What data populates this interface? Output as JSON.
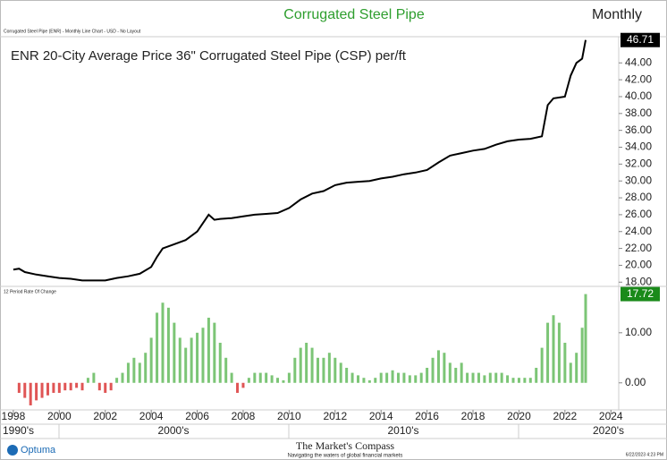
{
  "header": {
    "title": "Corrugated Steel Pipe",
    "period": "Monthly",
    "caption": "Corrugated Steel Pipe (ENR) - Monthly Line Chart - USD - No Layout"
  },
  "chart_data": [
    {
      "type": "line",
      "title": "ENR 20-City Average Price 36\" Corrugated Steel Pipe (CSP) per/ft",
      "color": "#000000",
      "x": [
        1998.0,
        1998.25,
        1998.5,
        1999.0,
        1999.5,
        2000.0,
        2000.5,
        2001.0,
        2001.5,
        2002.0,
        2002.5,
        2003.0,
        2003.5,
        2004.0,
        2004.25,
        2004.5,
        2005.0,
        2005.5,
        2006.0,
        2006.5,
        2006.75,
        2007.0,
        2007.5,
        2008.0,
        2008.5,
        2009.0,
        2009.5,
        2010.0,
        2010.5,
        2011.0,
        2011.5,
        2012.0,
        2012.5,
        2013.0,
        2013.5,
        2014.0,
        2014.5,
        2015.0,
        2015.5,
        2016.0,
        2016.5,
        2017.0,
        2017.5,
        2018.0,
        2018.5,
        2019.0,
        2019.5,
        2020.0,
        2020.5,
        2021.0,
        2021.25,
        2021.5,
        2022.0,
        2022.25,
        2022.5,
        2022.75,
        2022.9
      ],
      "values": [
        19.5,
        19.6,
        19.2,
        18.9,
        18.7,
        18.5,
        18.4,
        18.2,
        18.2,
        18.2,
        18.5,
        18.7,
        19.0,
        19.8,
        21.0,
        22.0,
        22.5,
        23.0,
        24.0,
        26.0,
        25.4,
        25.5,
        25.6,
        25.8,
        26.0,
        26.1,
        26.2,
        26.8,
        27.8,
        28.5,
        28.8,
        29.5,
        29.8,
        29.9,
        30.0,
        30.3,
        30.5,
        30.8,
        31.0,
        31.3,
        32.2,
        33.0,
        33.3,
        33.6,
        33.8,
        34.3,
        34.7,
        34.9,
        35.0,
        35.3,
        39.0,
        39.8,
        40.0,
        42.5,
        44.0,
        44.5,
        46.71
      ],
      "xlim": [
        1997.42,
        2024.34
      ],
      "ylim": [
        17.5,
        47.0
      ],
      "yticks": [
        {
          "value": 18,
          "label": "18.00"
        },
        {
          "value": 20,
          "label": "20.00"
        },
        {
          "value": 22,
          "label": "22.00"
        },
        {
          "value": 24,
          "label": "24.00"
        },
        {
          "value": 26,
          "label": "26.00"
        },
        {
          "value": 28,
          "label": "28.00"
        },
        {
          "value": 30,
          "label": "30.00"
        },
        {
          "value": 32,
          "label": "32.00"
        },
        {
          "value": 34,
          "label": "34.00"
        },
        {
          "value": 36,
          "label": "36.00"
        },
        {
          "value": 38,
          "label": "38.00"
        },
        {
          "value": 40,
          "label": "40.00"
        },
        {
          "value": 42,
          "label": "42.00"
        },
        {
          "value": 44,
          "label": "44.00"
        }
      ]
    },
    {
      "type": "bar",
      "title": "12 Period Rate Of Change",
      "colors": {
        "positive": "#7cc576",
        "negative": "#e05555"
      },
      "last_color": "#1a8a1a",
      "x": [
        1998.25,
        1998.5,
        1998.75,
        1999.0,
        1999.25,
        1999.5,
        1999.75,
        2000.0,
        2000.25,
        2000.5,
        2000.75,
        2001.0,
        2001.25,
        2001.5,
        2001.75,
        2002.0,
        2002.25,
        2002.5,
        2002.75,
        2003.0,
        2003.25,
        2003.5,
        2003.75,
        2004.0,
        2004.25,
        2004.5,
        2004.75,
        2005.0,
        2005.25,
        2005.5,
        2005.75,
        2006.0,
        2006.25,
        2006.5,
        2006.75,
        2007.0,
        2007.25,
        2007.5,
        2007.75,
        2008.0,
        2008.25,
        2008.5,
        2008.75,
        2009.0,
        2009.25,
        2009.5,
        2009.75,
        2010.0,
        2010.25,
        2010.5,
        2010.75,
        2011.0,
        2011.25,
        2011.5,
        2011.75,
        2012.0,
        2012.25,
        2012.5,
        2012.75,
        2013.0,
        2013.25,
        2013.5,
        2013.75,
        2014.0,
        2014.25,
        2014.5,
        2014.75,
        2015.0,
        2015.25,
        2015.5,
        2015.75,
        2016.0,
        2016.25,
        2016.5,
        2016.75,
        2017.0,
        2017.25,
        2017.5,
        2017.75,
        2018.0,
        2018.25,
        2018.5,
        2018.75,
        2019.0,
        2019.25,
        2019.5,
        2019.75,
        2020.0,
        2020.25,
        2020.5,
        2020.75,
        2021.0,
        2021.25,
        2021.5,
        2021.75,
        2022.0,
        2022.25,
        2022.5,
        2022.75,
        2022.9
      ],
      "values": [
        -2,
        -3,
        -4.5,
        -3.5,
        -3,
        -2.5,
        -2,
        -2,
        -1.5,
        -1.5,
        -1,
        -1.5,
        1,
        2,
        -1.5,
        -2,
        -1.5,
        1,
        2,
        4,
        5,
        4,
        6,
        9,
        14,
        16,
        15,
        12,
        9,
        7,
        9,
        10,
        11,
        13,
        12,
        8,
        5,
        2,
        -2,
        -1,
        1,
        2,
        2,
        2,
        1.5,
        1,
        0.5,
        2,
        5,
        7,
        8,
        7,
        5,
        5,
        6,
        5,
        4,
        3,
        2,
        1.5,
        1,
        0.5,
        1,
        2,
        2,
        2.5,
        2,
        2,
        1.5,
        1.5,
        2,
        3,
        5,
        6.5,
        6,
        4,
        3,
        4,
        2,
        2,
        2,
        1.5,
        2,
        2,
        2,
        1.5,
        1,
        1,
        1,
        1,
        3,
        7,
        12,
        13.5,
        12,
        8,
        4,
        6,
        11,
        17.72
      ],
      "xlim": [
        1997.42,
        2024.34
      ],
      "ylim": [
        -5.4,
        18.9
      ],
      "yticks": [
        {
          "value": 0,
          "label": "0.00"
        },
        {
          "value": 10,
          "label": "10.00"
        }
      ],
      "xticks": [
        1998,
        2000,
        2002,
        2004,
        2006,
        2008,
        2010,
        2012,
        2014,
        2016,
        2018,
        2020,
        2022,
        2024
      ]
    }
  ],
  "decades": [
    "1990's",
    "2000's",
    "2010's",
    "2020's"
  ],
  "footer": {
    "logo": "Optuma",
    "brand": "The Market's Compass",
    "tagline": "Navigating the waters of global financial markets",
    "timestamp": "6/22/2023 4:23 PM"
  }
}
